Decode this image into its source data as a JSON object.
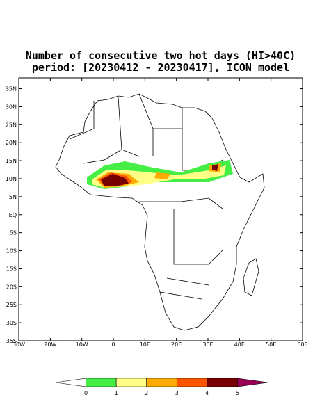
{
  "title": [
    "Number of consecutive two hot days (HI>40C)",
    "period: [20230412 - 20230417], ICON model"
  ],
  "lat_ticks": [
    {
      "value": 35,
      "label": "35N"
    },
    {
      "value": 30,
      "label": "30N"
    },
    {
      "value": 25,
      "label": "25N"
    },
    {
      "value": 20,
      "label": "20N"
    },
    {
      "value": 15,
      "label": "15N"
    },
    {
      "value": 10,
      "label": "10N"
    },
    {
      "value": 5,
      "label": "5N"
    },
    {
      "value": 0,
      "label": "EQ"
    },
    {
      "value": -5,
      "label": "5S"
    },
    {
      "value": -10,
      "label": "10S"
    },
    {
      "value": -15,
      "label": "15S"
    },
    {
      "value": -20,
      "label": "20S"
    },
    {
      "value": -25,
      "label": "25S"
    },
    {
      "value": -30,
      "label": "30S"
    },
    {
      "value": -35,
      "label": "35S"
    }
  ],
  "lon_ticks": [
    {
      "value": -30,
      "label": "30W"
    },
    {
      "value": -20,
      "label": "20W"
    },
    {
      "value": -10,
      "label": "10W"
    },
    {
      "value": 0,
      "label": "0"
    },
    {
      "value": 10,
      "label": "10E"
    },
    {
      "value": 20,
      "label": "20E"
    },
    {
      "value": 30,
      "label": "30E"
    },
    {
      "value": 40,
      "label": "40E"
    },
    {
      "value": 50,
      "label": "50E"
    },
    {
      "value": 60,
      "label": "60E"
    }
  ],
  "lonlim": [
    -30,
    60
  ],
  "latlim": [
    -35,
    38
  ],
  "colorbar": {
    "levels": [
      0,
      1,
      2,
      3,
      4,
      5
    ],
    "colors": [
      "#ffffff",
      "#44ee44",
      "#ffff88",
      "#ffaa00",
      "#ff5500",
      "#770000",
      "#990055"
    ]
  }
}
